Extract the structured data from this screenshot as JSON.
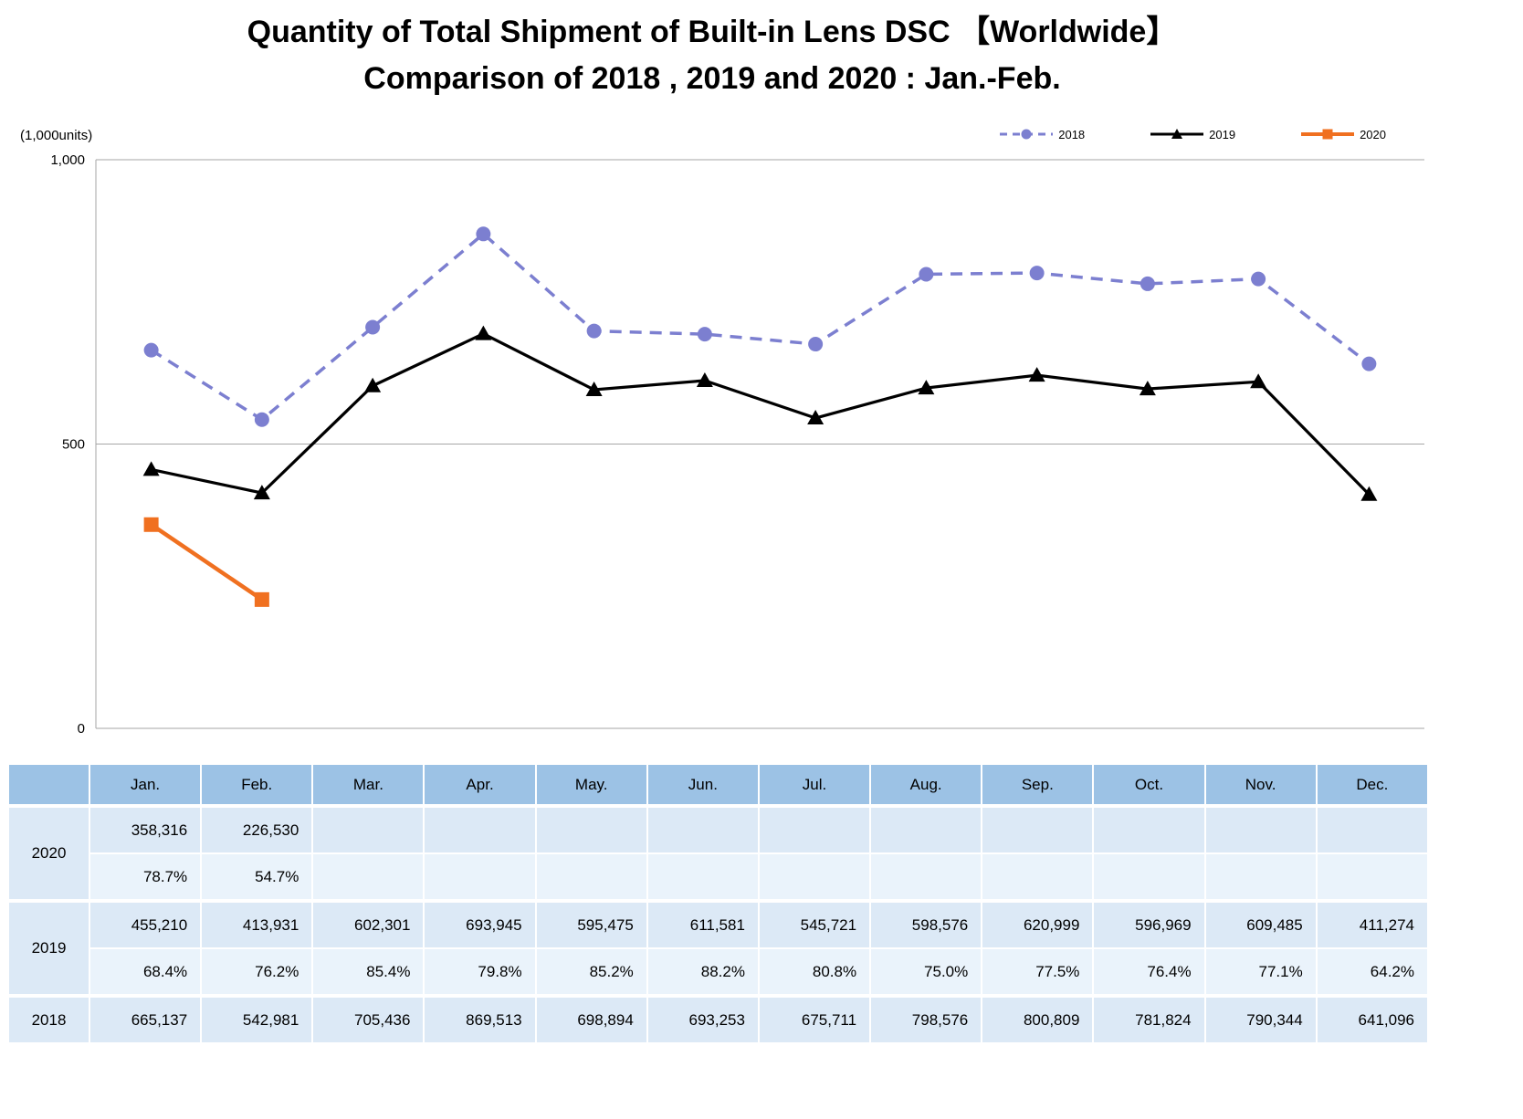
{
  "title": {
    "line1": "Quantity of Total Shipment of Built-in Lens DSC 【Worldwide】",
    "line2": "Comparison of 2018 , 2019 and 2020 : Jan.-Feb."
  },
  "y_axis_unit": "(1,000units)",
  "chart_data": {
    "type": "line",
    "categories": [
      "Jan.",
      "Feb.",
      "Mar.",
      "Apr.",
      "May.",
      "Jun.",
      "Jul.",
      "Aug.",
      "Sep.",
      "Oct.",
      "Nov.",
      "Dec."
    ],
    "title": "Quantity of Total Shipment of Built-in Lens DSC 【Worldwide】 Comparison of 2018 , 2019 and 2020 : Jan.-Feb.",
    "xlabel": "",
    "ylabel": "(1,000units)",
    "ylim": [
      0,
      1000
    ],
    "yticks": [
      0,
      500,
      1000
    ],
    "ytick_labels": [
      "0",
      "500",
      "1,000"
    ],
    "grid": "horizontal",
    "legend_position": "top-right",
    "series": [
      {
        "name": "2018",
        "color": "#7C7FD0",
        "style": "dashed",
        "marker": "circle",
        "values": [
          665137,
          542981,
          705436,
          869513,
          698894,
          693253,
          675711,
          798576,
          800809,
          781824,
          790344,
          641096
        ]
      },
      {
        "name": "2019",
        "color": "#000000",
        "style": "solid",
        "marker": "triangle",
        "values": [
          455210,
          413931,
          602301,
          693945,
          595475,
          611581,
          545721,
          598576,
          620999,
          596969,
          609485,
          411274
        ]
      },
      {
        "name": "2020",
        "color": "#F07020",
        "style": "solid",
        "marker": "square",
        "values": [
          358316,
          226530,
          null,
          null,
          null,
          null,
          null,
          null,
          null,
          null,
          null,
          null
        ]
      }
    ]
  },
  "table": {
    "months": [
      "Jan.",
      "Feb.",
      "Mar.",
      "Apr.",
      "May.",
      "Jun.",
      "Jul.",
      "Aug.",
      "Sep.",
      "Oct.",
      "Nov.",
      "Dec."
    ],
    "rows": [
      {
        "year": "2020",
        "values": [
          "358,316",
          "226,530",
          "",
          "",
          "",
          "",
          "",
          "",
          "",
          "",
          "",
          ""
        ],
        "percents": [
          "78.7%",
          "54.7%",
          "",
          "",
          "",
          "",
          "",
          "",
          "",
          "",
          "",
          ""
        ]
      },
      {
        "year": "2019",
        "values": [
          "455,210",
          "413,931",
          "602,301",
          "693,945",
          "595,475",
          "611,581",
          "545,721",
          "598,576",
          "620,999",
          "596,969",
          "609,485",
          "411,274"
        ],
        "percents": [
          "68.4%",
          "76.2%",
          "85.4%",
          "79.8%",
          "85.2%",
          "88.2%",
          "80.8%",
          "75.0%",
          "77.5%",
          "76.4%",
          "77.1%",
          "64.2%"
        ]
      },
      {
        "year": "2018",
        "values": [
          "665,137",
          "542,981",
          "705,436",
          "869,513",
          "698,894",
          "693,253",
          "675,711",
          "798,576",
          "800,809",
          "781,824",
          "790,344",
          "641,096"
        ],
        "percents": null
      }
    ]
  },
  "colors": {
    "table_header_blue": "#9CC2E5",
    "table_values_row": "#DCE9F6",
    "table_percent_row": "#EAF3FB",
    "grid_gray": "#A6A6A6",
    "series_2018": "#7C7FD0",
    "series_2019": "#000000",
    "series_2020": "#F07020"
  }
}
